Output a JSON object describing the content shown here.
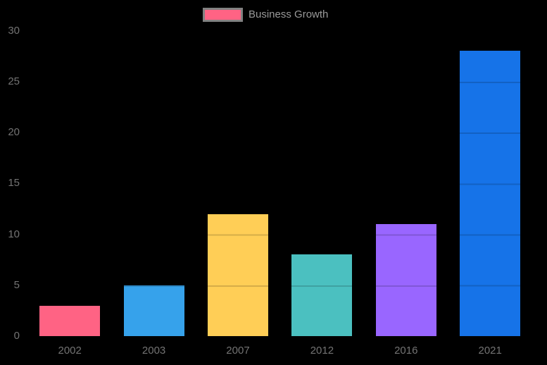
{
  "legend": {
    "label": "Business Growth",
    "swatch_fill": "#ff6384",
    "swatch_border": "#818181",
    "text_color": "#999999"
  },
  "chart_data": {
    "type": "bar",
    "title": "",
    "xlabel": "",
    "ylabel": "",
    "categories": [
      "2002",
      "2003",
      "2007",
      "2012",
      "2016",
      "2021"
    ],
    "series": [
      {
        "name": "Business Growth",
        "values": [
          3,
          5,
          12,
          8,
          11,
          28
        ]
      }
    ],
    "bar_colors": [
      "#ff6384",
      "#36a2eb",
      "#ffce56",
      "#4bc0c0",
      "#9966ff",
      "#1673e8"
    ],
    "y_ticks": [
      0,
      5,
      10,
      15,
      20,
      25,
      30
    ],
    "ylim": [
      0,
      30
    ],
    "legend_position": "top-center",
    "grid": "horizontal lines every 5 units, dark translucent, visible only over bars",
    "background_color": "#000000",
    "tick_color": "#737373"
  }
}
